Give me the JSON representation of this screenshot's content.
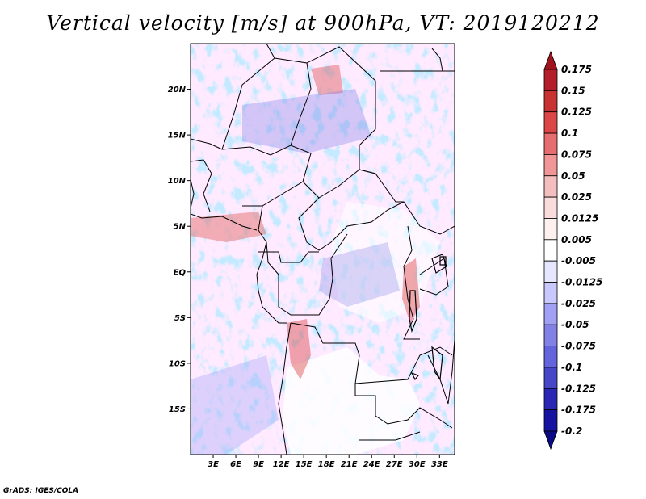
{
  "title": "Vertical velocity [m/s] at 900hPa, VT: 2019120212",
  "credit": "GrADS: IGES/COLA",
  "map": {
    "lon_range": [
      0,
      35
    ],
    "lat_range": [
      -20,
      25
    ],
    "lat_ticks": [
      {
        "value": 20,
        "label": "20N"
      },
      {
        "value": 15,
        "label": "15N"
      },
      {
        "value": 10,
        "label": "10N"
      },
      {
        "value": 5,
        "label": "5N"
      },
      {
        "value": 0,
        "label": "EQ"
      },
      {
        "value": -5,
        "label": "5S"
      },
      {
        "value": -10,
        "label": "10S"
      },
      {
        "value": -15,
        "label": "15S"
      }
    ],
    "lon_ticks": [
      {
        "value": 3,
        "label": "3E"
      },
      {
        "value": 6,
        "label": "6E"
      },
      {
        "value": 9,
        "label": "9E"
      },
      {
        "value": 12,
        "label": "12E"
      },
      {
        "value": 15,
        "label": "15E"
      },
      {
        "value": 18,
        "label": "18E"
      },
      {
        "value": 21,
        "label": "21E"
      },
      {
        "value": 24,
        "label": "24E"
      },
      {
        "value": 27,
        "label": "27E"
      },
      {
        "value": 30,
        "label": "30E"
      },
      {
        "value": 33,
        "label": "33E"
      }
    ]
  },
  "colorbar": {
    "levels": [
      "0.175",
      "0.15",
      "0.125",
      "0.1",
      "0.075",
      "0.05",
      "0.025",
      "0.0125",
      "0.005",
      "-0.005",
      "-0.0125",
      "-0.025",
      "-0.05",
      "-0.075",
      "-0.1",
      "-0.125",
      "-0.175",
      "-0.2"
    ],
    "colors": [
      "#a0141e",
      "#b41e28",
      "#c83232",
      "#dc4646",
      "#e66e6e",
      "#f09696",
      "#f5bebe",
      "#fadcdc",
      "#fff0f0",
      "#ffffff",
      "#e6e6ff",
      "#c8c8ff",
      "#a0a0f5",
      "#8282e6",
      "#6464dc",
      "#4646c8",
      "#2828b4",
      "#1414a0",
      "#0a0a82"
    ]
  },
  "colors": {
    "upward_max": "#a0141e",
    "downward_max": "#0a0a82",
    "border": "#000000"
  }
}
